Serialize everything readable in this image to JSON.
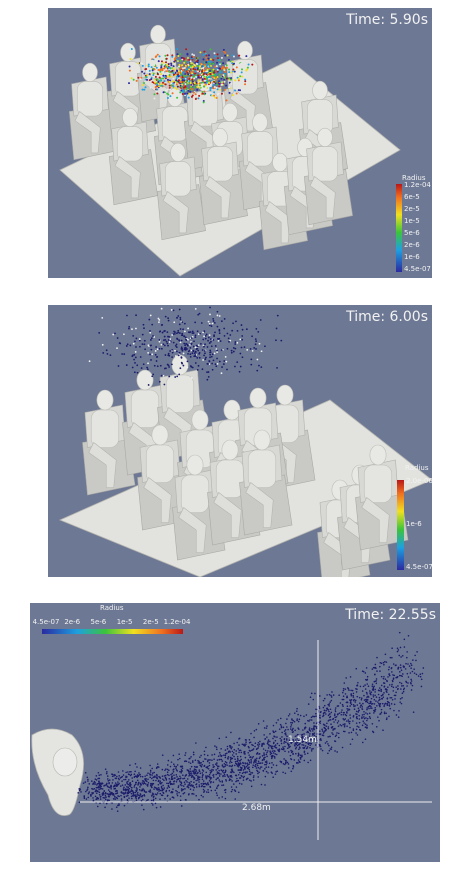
{
  "panels": [
    {
      "time": "Time: 5.90s",
      "colorbar": {
        "title": "Radius",
        "labels": [
          "1.2e-04",
          "6e-5",
          "2e-5",
          "1e-5",
          "5e-6",
          "2e-6",
          "1e-6",
          "4.5e-07"
        ]
      }
    },
    {
      "time": "Time: 6.00s",
      "colorbar": {
        "title": "Radius",
        "labels": [
          "2.0e-06",
          "1e-6",
          "4.5e-07"
        ]
      }
    },
    {
      "time": "Time: 22.55s",
      "colorbar": {
        "title": "Radius",
        "labels": [
          "4.5e-07",
          "2e-6",
          "5e-6",
          "1e-5",
          "2e-5",
          "1.2e-04"
        ]
      },
      "annotations": [
        "1.54m",
        "2.68m"
      ]
    }
  ]
}
